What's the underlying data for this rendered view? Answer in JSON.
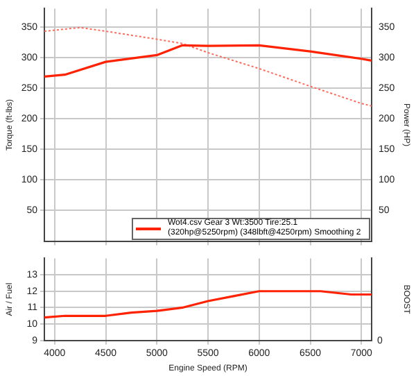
{
  "chart_data": [
    {
      "type": "line",
      "ylabel": "Torque (ft-lbs)",
      "y2label": "Power (HP)",
      "x": [
        3900,
        4100,
        4500,
        5000,
        5250,
        5500,
        6000,
        6500,
        7000,
        7100
      ],
      "series": [
        {
          "name": "Wot4.csv Gear 3 Wt:3500 Tire:25.1 (320hp@5250rpm) (348lbft@4250rpm) Smoothing 2",
          "color": "#ff2200",
          "axis": "y2",
          "line_style": "solid",
          "values": [
            269,
            272,
            293,
            304,
            320,
            319,
            320,
            310,
            298,
            295
          ]
        },
        {
          "color": "#ff6a5a",
          "line_style": "dotted",
          "x": [
            3900,
            4250,
            4500,
            5000,
            5250,
            5500,
            6000,
            6500,
            7000,
            7100
          ],
          "values": [
            343,
            349,
            343,
            330,
            323,
            308,
            282,
            253,
            225,
            221
          ]
        }
      ],
      "xlim": [
        3900,
        7100
      ],
      "xticks": [
        4000,
        4500,
        5000,
        5500,
        6000,
        6500,
        7000
      ],
      "ylim": [
        0,
        380
      ],
      "yticks": [
        50,
        100,
        150,
        200,
        250,
        300,
        350
      ],
      "y2lim": [
        0,
        380
      ],
      "y2ticks": [
        50,
        100,
        150,
        200,
        250,
        300,
        350
      ],
      "tick_labels": "y",
      "grid": true,
      "legend": "bottom right"
    },
    {
      "type": "line",
      "xlabel": "Engine Speed (RPM)",
      "ylabel": "Air / Fuel",
      "y2label": "BOOST",
      "x": [
        3900,
        4100,
        4500,
        4750,
        5000,
        5250,
        5500,
        5750,
        6000,
        6250,
        6500,
        6600,
        6900,
        7100
      ],
      "series": [
        {
          "color": "#ff2200",
          "line_style": "solid",
          "values": [
            10.4,
            10.5,
            10.5,
            10.7,
            10.8,
            11.0,
            11.4,
            11.7,
            12.0,
            12.0,
            12.0,
            12.0,
            11.8,
            11.8
          ]
        }
      ],
      "xlim": [
        3900,
        7100
      ],
      "xticks": [
        4000,
        4500,
        5000,
        5500,
        6000,
        6500,
        7000
      ],
      "ylim": [
        9,
        14
      ],
      "yticks": [
        9,
        10,
        11,
        12,
        13
      ],
      "annotations": [
        "0"
      ],
      "grid": true
    }
  ]
}
